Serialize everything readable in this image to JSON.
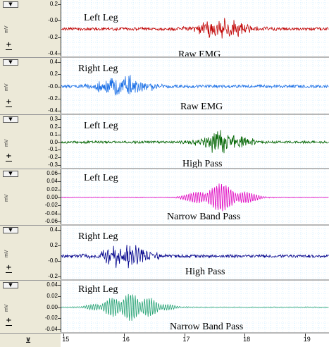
{
  "unit_label": "mV",
  "dropdown_glyph": "▼",
  "zoom_in_glyph": "+",
  "zoom_out_glyph": "−",
  "corner_icon_glyph": "⊻",
  "x_axis": {
    "ticks": [
      "15",
      "16",
      "17",
      "18",
      "19"
    ],
    "range": [
      14.95,
      19.4
    ]
  },
  "panels": [
    {
      "channel": "Left Leg",
      "signal": "Raw EMG",
      "color": "#c00000",
      "yticks": [
        "0.2",
        "-0.0",
        "-0.2",
        "-0.4"
      ],
      "ylim": [
        -0.5,
        0.3
      ],
      "baseline": -0.1,
      "burst": {
        "center": 17.65,
        "width": 0.55,
        "amp": 0.14,
        "lobes": 1
      },
      "noise": 0.008,
      "show_zoom": true
    },
    {
      "channel": "Right Leg",
      "signal": "Raw EMG",
      "color": "#1a6fe6",
      "yticks": [
        "0.4",
        "0.2",
        "-0.0",
        "-0.2",
        "-0.4"
      ],
      "ylim": [
        -0.5,
        0.5
      ],
      "baseline": 0.0,
      "burst": {
        "center": 15.95,
        "width": 0.55,
        "amp": 0.2,
        "lobes": 1
      },
      "noise": 0.01,
      "show_zoom": true
    },
    {
      "channel": "Left Leg",
      "signal": "High Pass",
      "color": "#006400",
      "yticks": [
        "0.3",
        "0.2",
        "0.1",
        "0.0",
        "-0.1",
        "-0.2",
        "-0.3"
      ],
      "ylim": [
        -0.35,
        0.35
      ],
      "baseline": 0.0,
      "burst": {
        "center": 17.65,
        "width": 0.55,
        "amp": 0.13,
        "lobes": 1
      },
      "noise": 0.006,
      "show_zoom": true
    },
    {
      "channel": "Left Leg",
      "signal": "Narrow Band Pass",
      "color": "#e000c0",
      "yticks": [
        "0.06",
        "0.04",
        "0.02",
        "0.00",
        "-0.02",
        "-0.04",
        "-0.06"
      ],
      "ylim": [
        -0.065,
        0.065
      ],
      "baseline": 0.0,
      "burst": {
        "center": 17.6,
        "width": 0.6,
        "amp": 0.038,
        "lobes": 2
      },
      "noise": 0.0006,
      "show_zoom": false
    },
    {
      "channel": "Right Leg",
      "signal": "High Pass",
      "color": "#00008b",
      "yticks": [
        "0.4",
        "0.2",
        "-0.0",
        "-0.2"
      ],
      "ylim": [
        -0.35,
        0.45
      ],
      "baseline": 0.0,
      "burst": {
        "center": 16.0,
        "width": 0.55,
        "amp": 0.17,
        "lobes": 1
      },
      "noise": 0.008,
      "show_zoom": true
    },
    {
      "channel": "Right Leg",
      "signal": "Narrow Band Pass",
      "color": "#20a070",
      "yticks": [
        "0.04",
        "0.02",
        "0.00",
        "-0.02",
        "-0.04"
      ],
      "ylim": [
        -0.05,
        0.05
      ],
      "baseline": 0.0,
      "burst": {
        "center": 16.1,
        "width": 0.65,
        "amp": 0.032,
        "lobes": 3
      },
      "noise": 0.0005,
      "show_zoom": true
    }
  ]
}
